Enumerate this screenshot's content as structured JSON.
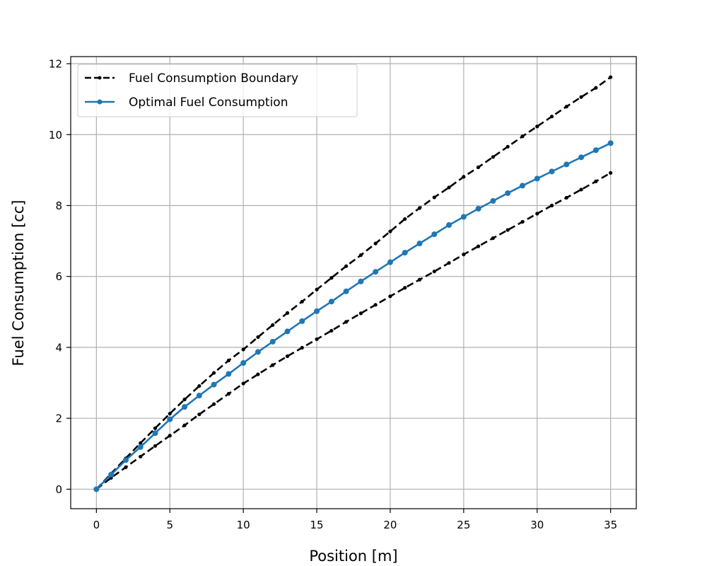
{
  "chart_data": {
    "type": "line",
    "title": "",
    "xlabel": "Position [m]",
    "ylabel": "Fuel Consumption [cc]",
    "xlim": [
      -1.75,
      36.75
    ],
    "ylim": [
      -0.55,
      12.2
    ],
    "xticks": [
      0,
      5,
      10,
      15,
      20,
      25,
      30,
      35
    ],
    "yticks": [
      0,
      2,
      4,
      6,
      8,
      10,
      12
    ],
    "grid": true,
    "legend_position": "upper-left",
    "x": [
      0,
      1,
      2,
      3,
      4,
      5,
      6,
      7,
      8,
      9,
      10,
      11,
      12,
      13,
      14,
      15,
      16,
      17,
      18,
      19,
      20,
      21,
      22,
      23,
      24,
      25,
      26,
      27,
      28,
      29,
      30,
      31,
      32,
      33,
      34,
      35
    ],
    "series": [
      {
        "name": "Fuel Consumption Boundary",
        "color": "#000000",
        "style": "dashed",
        "marker": "small-dot",
        "values": [
          0,
          0.44,
          0.87,
          1.3,
          1.72,
          2.13,
          2.53,
          2.91,
          3.28,
          3.63,
          3.94,
          4.29,
          4.63,
          4.97,
          5.29,
          5.63,
          5.96,
          6.29,
          6.6,
          6.93,
          7.27,
          7.62,
          7.93,
          8.23,
          8.51,
          8.81,
          9.08,
          9.37,
          9.66,
          9.95,
          10.23,
          10.51,
          10.79,
          11.06,
          11.32,
          11.62
        ]
      },
      {
        "name": "",
        "color": "#000000",
        "style": "dashed",
        "marker": "small-dot",
        "values": [
          0,
          0.32,
          0.62,
          0.92,
          1.22,
          1.51,
          1.8,
          2.11,
          2.4,
          2.69,
          2.98,
          3.24,
          3.5,
          3.75,
          3.99,
          4.23,
          4.47,
          4.72,
          4.96,
          5.2,
          5.44,
          5.68,
          5.91,
          6.14,
          6.38,
          6.62,
          6.85,
          7.08,
          7.31,
          7.54,
          7.77,
          8,
          8.22,
          8.45,
          8.68,
          8.92
        ]
      },
      {
        "name": "Optimal Fuel Consumption",
        "color": "#1f77b4",
        "style": "solid",
        "marker": "dot",
        "values": [
          0,
          0.41,
          0.82,
          1.19,
          1.58,
          1.97,
          2.32,
          2.64,
          2.95,
          3.25,
          3.56,
          3.87,
          4.16,
          4.45,
          4.74,
          5.02,
          5.29,
          5.58,
          5.86,
          6.13,
          6.4,
          6.67,
          6.93,
          7.19,
          7.45,
          7.68,
          7.91,
          8.13,
          8.35,
          8.56,
          8.76,
          8.96,
          9.16,
          9.36,
          9.56,
          9.76
        ]
      }
    ]
  }
}
